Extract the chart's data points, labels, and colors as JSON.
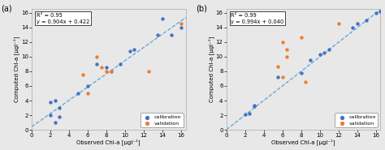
{
  "plot_a": {
    "label": "(a)",
    "equation": "R² = 0.95\ny = 0.904x + 0.422",
    "slope": 0.904,
    "intercept": 0.422,
    "calib_x": [
      2.0,
      2.5,
      2.5,
      3.0,
      2.0,
      3.0,
      5.0,
      6.0,
      7.0,
      8.0,
      8.5,
      9.5,
      10.5,
      11.0,
      13.5,
      14.0,
      15.0,
      16.0
    ],
    "calib_y": [
      3.8,
      4.0,
      1.0,
      1.8,
      2.0,
      3.0,
      5.0,
      6.0,
      9.0,
      8.5,
      8.0,
      9.0,
      10.8,
      11.0,
      13.0,
      15.2,
      13.0,
      14.0
    ],
    "valid_x": [
      5.5,
      6.0,
      7.0,
      7.5,
      8.0,
      8.5,
      12.5,
      16.0
    ],
    "valid_y": [
      7.5,
      5.0,
      10.0,
      8.5,
      8.0,
      8.0,
      8.0,
      14.5
    ],
    "xlim": [
      0,
      16.5
    ],
    "ylim": [
      0,
      16.5
    ],
    "xticks": [
      0,
      2,
      4,
      6,
      8,
      10,
      12,
      14,
      16
    ],
    "yticks": [
      0,
      2,
      4,
      6,
      8,
      10,
      12,
      14,
      16
    ],
    "xlabel": "Observed Chl-a [µgl⁻¹]",
    "ylabel": "Computed Chl-a [µgl⁻¹]"
  },
  "plot_b": {
    "label": "(b)",
    "equation": "R² = 0.99\ny = 0.994x + 0.040",
    "slope": 0.994,
    "intercept": 0.04,
    "calib_x": [
      2.0,
      2.5,
      3.0,
      3.0,
      5.5,
      8.0,
      9.0,
      10.0,
      10.5,
      11.0,
      13.5,
      14.0,
      15.0,
      16.0,
      16.5
    ],
    "calib_y": [
      2.1,
      2.2,
      3.2,
      3.3,
      7.2,
      7.8,
      9.5,
      10.3,
      10.5,
      11.0,
      14.0,
      14.5,
      15.0,
      16.0,
      16.2
    ],
    "valid_x": [
      5.5,
      6.0,
      6.0,
      6.5,
      6.5,
      8.0,
      8.5,
      12.0
    ],
    "valid_y": [
      8.7,
      7.2,
      12.0,
      11.0,
      10.0,
      12.6,
      6.5,
      14.5
    ],
    "xlim": [
      0,
      16.5
    ],
    "ylim": [
      0,
      16.5
    ],
    "xticks": [
      0,
      2,
      4,
      6,
      8,
      10,
      12,
      14,
      16
    ],
    "yticks": [
      0,
      2,
      4,
      6,
      8,
      10,
      12,
      14,
      16
    ],
    "xlabel": "Observed Chl-a [µgl⁻¹]",
    "ylabel": "Computed Chl-a [µgl⁻¹]"
  },
  "calib_color": "#4472C4",
  "valid_color": "#ED7D31",
  "line_color": "#5BA3D9",
  "marker_size": 10,
  "bg_color": "#E8E8E8",
  "axes_bg": "#E8E8E8"
}
